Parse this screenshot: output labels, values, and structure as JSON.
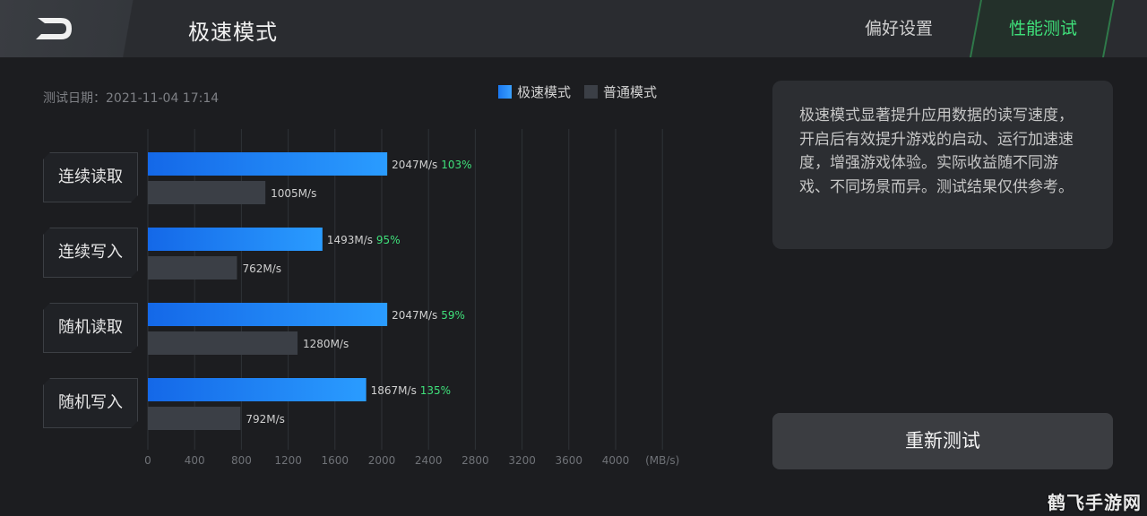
{
  "header": {
    "title": "极速模式",
    "tabs": [
      {
        "label": "偏好设置",
        "active": false
      },
      {
        "label": "性能测试",
        "active": true
      }
    ]
  },
  "test_date": "测试日期：2021-11-04 17:14",
  "legend": {
    "fast": "极速模式",
    "normal": "普通模式"
  },
  "colors": {
    "fast": "#1e84f8",
    "normal": "#3b3f46",
    "percent": "#3fe07a",
    "active_tab": "#3fe07a"
  },
  "chart_data": {
    "type": "bar",
    "orientation": "horizontal",
    "categories": [
      "连续读取",
      "连续写入",
      "随机读取",
      "随机写入"
    ],
    "series": [
      {
        "name": "极速模式",
        "values": [
          2047,
          1493,
          2047,
          1867
        ],
        "labels": [
          "2047M/s",
          "1493M/s",
          "2047M/s",
          "1867M/s"
        ]
      },
      {
        "name": "普通模式",
        "values": [
          1005,
          762,
          1280,
          792
        ],
        "labels": [
          "1005M/s",
          "762M/s",
          "1280M/s",
          "792M/s"
        ]
      }
    ],
    "improvements": [
      "103%",
      "95%",
      "59%",
      "135%"
    ],
    "xticks": [
      "0",
      "400",
      "800",
      "1200",
      "1600",
      "2000",
      "2400",
      "2800",
      "3200",
      "3600",
      "4000"
    ],
    "xunit": "(MB/s)",
    "xlim": [
      0,
      4400
    ],
    "grid": true
  },
  "info_text": "极速模式显著提升应用数据的读写速度，开启后有效提升游戏的启动、运行加速速度，增强游戏体验。实际收益随不同游戏、不同场景而异。测试结果仅供参考。",
  "retest_button": "重新测试",
  "watermark": "鹤飞手游网"
}
